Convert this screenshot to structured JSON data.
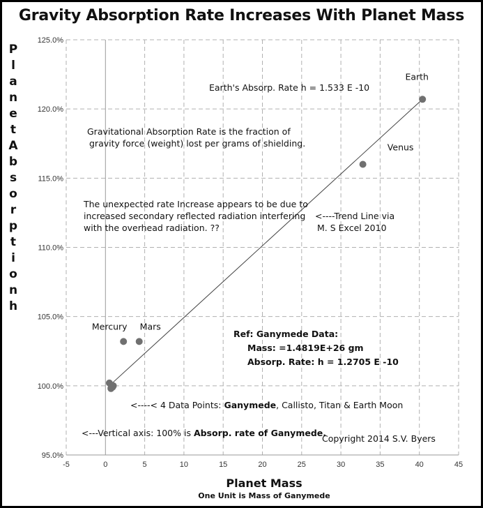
{
  "chart_data": {
    "type": "scatter",
    "title": "Gravity Absorption Rate Increases With Planet Mass",
    "ylabel": "Planet Absorption h",
    "xlabel": "Planet Mass",
    "xlabel_sub": "One Unit is Mass of Ganymede",
    "xlim": [
      -5,
      45
    ],
    "ylim": [
      95,
      125
    ],
    "x_ticks": [
      -5,
      0,
      5,
      10,
      15,
      20,
      25,
      30,
      35,
      40,
      45
    ],
    "y_ticks": [
      95,
      100,
      105,
      110,
      115,
      120,
      125
    ],
    "x_tick_labels": [
      "-5",
      "0",
      "5",
      "10",
      "15",
      "20",
      "25",
      "30",
      "35",
      "40",
      "45"
    ],
    "y_tick_labels": [
      "95.0%",
      "100.0%",
      "105.0%",
      "110.0%",
      "115.0%",
      "120.0%",
      "125.0%"
    ],
    "grid": true,
    "points": [
      {
        "label": "",
        "x": 0.5,
        "y": 100.2
      },
      {
        "label": "",
        "x": 0.7,
        "y": 99.8
      },
      {
        "label": "",
        "x": 1.0,
        "y": 100.0
      },
      {
        "label": "",
        "x": 0.9,
        "y": 99.9
      },
      {
        "label": "Mercury",
        "x": 2.3,
        "y": 103.2
      },
      {
        "label": "Mars",
        "x": 4.3,
        "y": 103.2
      },
      {
        "label": "Venus",
        "x": 32.8,
        "y": 116.0
      },
      {
        "label": "Earth",
        "x": 40.4,
        "y": 120.7
      }
    ],
    "trendline": {
      "x": [
        0.3,
        40.4
      ],
      "y": [
        99.9,
        120.7
      ]
    },
    "annotations": {
      "earth_rate": "Earth's Absorp. Rate   h =  1.533 E -10",
      "definition_line1": "Gravitational Absorption Rate is the fraction of",
      "definition_line2": "gravity  force (weight) lost per grams of shielding.",
      "unexpected_line1": "The unexpected rate Increase appears to be due to",
      "unexpected_line2": "increased secondary reflected radiation interfering",
      "unexpected_line3": "with  the overhead radiation.  ??",
      "trend_line1": "<----Trend Line via",
      "trend_line2": "M. S Excel  2010",
      "ref_title": "Ref:  Ganymede Data:",
      "ref_mass": "Mass:  =1.4819E+26 gm",
      "ref_rate": "Absorp. Rate:   h = 1.2705 E -10",
      "data_points_prefix": "<----< 4 Data Points: ",
      "data_points_bold": "Ganymede",
      "data_points_rest": ",  Callisto,  Titan &  Earth Moon",
      "vertical_prefix": "<---Vertical axis:   100% is ",
      "vertical_bold": "Absorp. rate of Ganymede.",
      "copyright": "Copyright 2014  S.V. Byers"
    }
  },
  "colors": {
    "marker": "#707070",
    "grid": "#b0b0b0",
    "trend": "#404040"
  }
}
